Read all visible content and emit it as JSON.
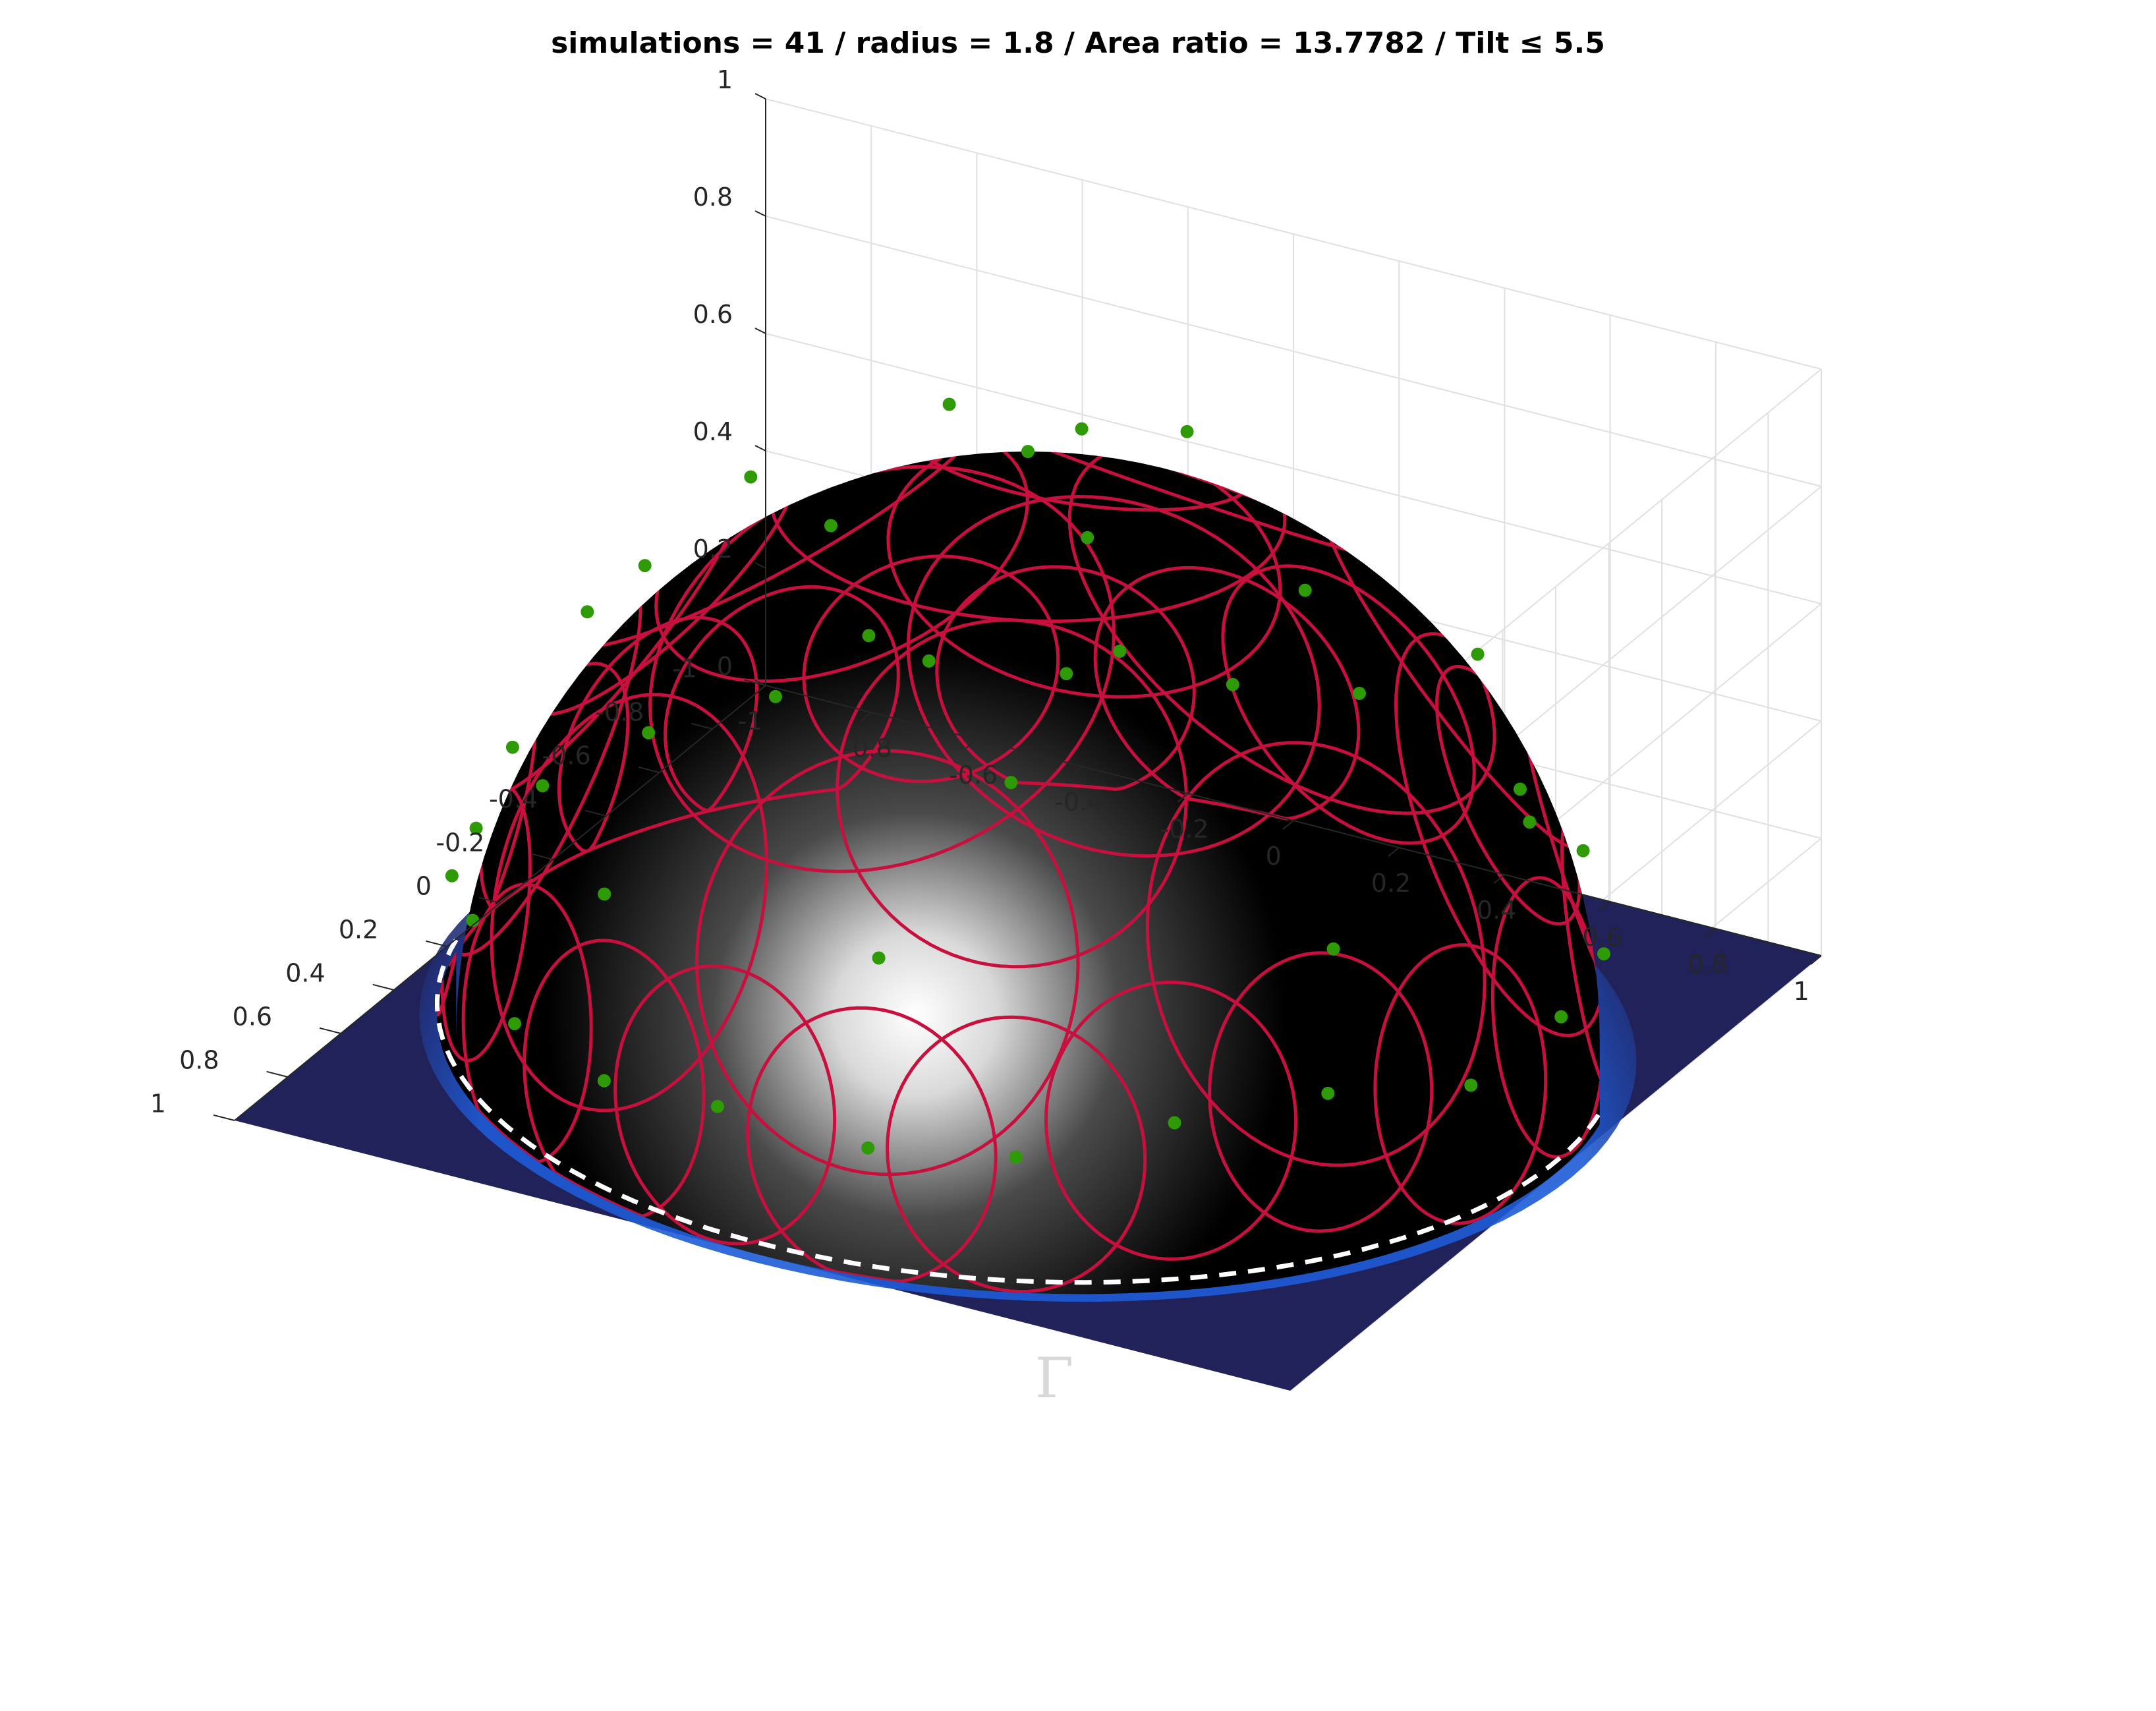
{
  "figure": {
    "title": "simulations = 41 / radius = 1.8 / Area ratio = 13.7782 / Tilt ≤ 5.5",
    "boundary_label": "Γ"
  },
  "chart_data": {
    "type": "scatter",
    "view": "3d-surface",
    "title": "simulations = 41 / radius = 1.8 / Area ratio = 13.7782 / Tilt ≤ 5.5",
    "xlabel": "",
    "ylabel": "",
    "zlabel": "",
    "xlim": [
      -1,
      1
    ],
    "ylim": [
      -1,
      1
    ],
    "zlim": [
      0,
      1
    ],
    "grid": true,
    "x_ticks": [
      "-1",
      "-0.8",
      "-0.6",
      "-0.4",
      "-0.2",
      "0",
      "0.2",
      "0.4",
      "0.6",
      "0.8",
      "1"
    ],
    "y_ticks": [
      "-1",
      "-0.8",
      "-0.6",
      "-0.4",
      "-0.2",
      "0",
      "0.2",
      "0.4",
      "0.6",
      "0.8",
      "1"
    ],
    "z_ticks": [
      "0",
      "0.2",
      "0.4",
      "0.6",
      "0.8",
      "1"
    ],
    "surface": "hemisphere of radius 1 centered at origin",
    "simulations": 41,
    "radius": 1.8,
    "area_ratio": 13.7782,
    "tilt_max": 5.5,
    "colors": {
      "surface": "#000000",
      "highlight": "#ffffff",
      "floor": "#22225a",
      "floor_glow": "#1e5bd6",
      "circles": "#c8103e",
      "points": "#2e9a06",
      "boundary": "#ffffff",
      "grid": "#e0e0e0",
      "axis": "#262626"
    },
    "points": [
      {
        "x": 0.0,
        "y": 0.0,
        "z": 1.0,
        "r": 0.45
      },
      {
        "x": -0.5,
        "y": 0.05,
        "z": 0.86,
        "r": 0.42
      },
      {
        "x": 0.05,
        "y": -0.5,
        "z": 0.86,
        "r": 0.42
      },
      {
        "x": 0.5,
        "y": -0.05,
        "z": 0.86,
        "r": 0.42
      },
      {
        "x": -0.05,
        "y": 0.5,
        "z": 0.86,
        "r": 0.42
      },
      {
        "x": -0.3,
        "y": -0.3,
        "z": 0.9,
        "r": 0.36
      },
      {
        "x": 0.35,
        "y": 0.35,
        "z": 0.87,
        "r": 0.36
      },
      {
        "x": -0.82,
        "y": -0.3,
        "z": 0.48,
        "r": 0.34
      },
      {
        "x": -0.55,
        "y": -0.65,
        "z": 0.52,
        "r": 0.34
      },
      {
        "x": -0.05,
        "y": -0.86,
        "z": 0.51,
        "r": 0.34
      },
      {
        "x": 0.45,
        "y": -0.75,
        "z": 0.49,
        "r": 0.34
      },
      {
        "x": 0.8,
        "y": -0.4,
        "z": 0.45,
        "r": 0.34
      },
      {
        "x": 0.86,
        "y": 0.15,
        "z": 0.49,
        "r": 0.34
      },
      {
        "x": -0.7,
        "y": 0.5,
        "z": 0.51,
        "r": 0.34
      },
      {
        "x": -0.2,
        "y": 0.85,
        "z": 0.49,
        "r": 0.34
      },
      {
        "x": 0.4,
        "y": 0.78,
        "z": 0.48,
        "r": 0.34
      },
      {
        "x": -0.95,
        "y": 0.15,
        "z": 0.27,
        "r": 0.26
      },
      {
        "x": -0.97,
        "y": -0.1,
        "z": 0.22,
        "r": 0.24
      },
      {
        "x": -0.9,
        "y": -0.38,
        "z": 0.2,
        "r": 0.22
      },
      {
        "x": -0.78,
        "y": -0.58,
        "z": 0.22,
        "r": 0.22
      },
      {
        "x": -0.6,
        "y": -0.78,
        "z": 0.18,
        "r": 0.22
      },
      {
        "x": -0.38,
        "y": -0.91,
        "z": 0.17,
        "r": 0.22
      },
      {
        "x": -0.12,
        "y": -0.98,
        "z": 0.16,
        "r": 0.22
      },
      {
        "x": 0.15,
        "y": -0.97,
        "z": 0.19,
        "r": 0.22
      },
      {
        "x": 0.4,
        "y": -0.89,
        "z": 0.22,
        "r": 0.22
      },
      {
        "x": 0.62,
        "y": -0.74,
        "z": 0.26,
        "r": 0.22
      },
      {
        "x": 0.8,
        "y": -0.57,
        "z": 0.19,
        "r": 0.22
      },
      {
        "x": 0.92,
        "y": -0.34,
        "z": 0.19,
        "r": 0.22
      },
      {
        "x": 0.97,
        "y": -0.1,
        "z": 0.22,
        "r": 0.22
      },
      {
        "x": 0.96,
        "y": 0.18,
        "z": 0.21,
        "r": 0.22
      },
      {
        "x": 0.88,
        "y": 0.42,
        "z": 0.22,
        "r": 0.22
      },
      {
        "x": 0.72,
        "y": 0.64,
        "z": 0.27,
        "r": 0.22
      },
      {
        "x": 0.5,
        "y": 0.82,
        "z": 0.28,
        "r": 0.22
      },
      {
        "x": 0.22,
        "y": 0.95,
        "z": 0.22,
        "r": 0.22
      },
      {
        "x": -0.08,
        "y": 0.97,
        "z": 0.23,
        "r": 0.22
      },
      {
        "x": -0.38,
        "y": 0.9,
        "z": 0.21,
        "r": 0.22
      },
      {
        "x": -0.62,
        "y": 0.74,
        "z": 0.26,
        "r": 0.22
      },
      {
        "x": -0.82,
        "y": 0.52,
        "z": 0.24,
        "r": 0.22
      },
      {
        "x": -0.6,
        "y": -0.2,
        "z": 0.77,
        "r": 0.3
      },
      {
        "x": 0.25,
        "y": -0.6,
        "z": 0.76,
        "r": 0.3
      },
      {
        "x": 0.62,
        "y": 0.28,
        "z": 0.73,
        "r": 0.3
      }
    ],
    "boundary_radius": 1.0
  }
}
